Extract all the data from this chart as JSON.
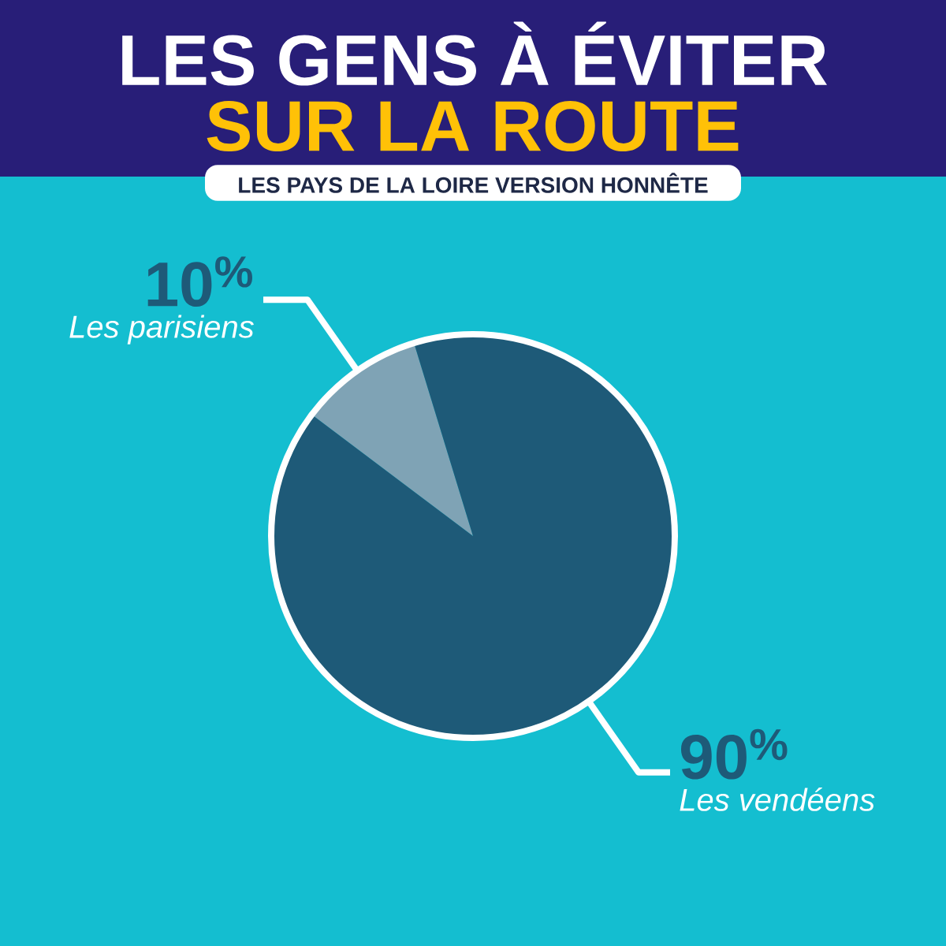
{
  "chart_data": {
    "type": "pie",
    "title": "LES GENS À ÉVITER",
    "subtitle": "SUR LA ROUTE",
    "annotations": [
      "LES PAYS DE LA LOIRE VERSION HONNÊTE"
    ],
    "categories": [
      "Les parisiens",
      "Les vendéens"
    ],
    "values": [
      10,
      90
    ],
    "value_labels": [
      "10$^{%}$",
      "90$^{%}$"
    ],
    "colors": [
      "#7fa3b5",
      "#1e5a78"
    ]
  }
}
